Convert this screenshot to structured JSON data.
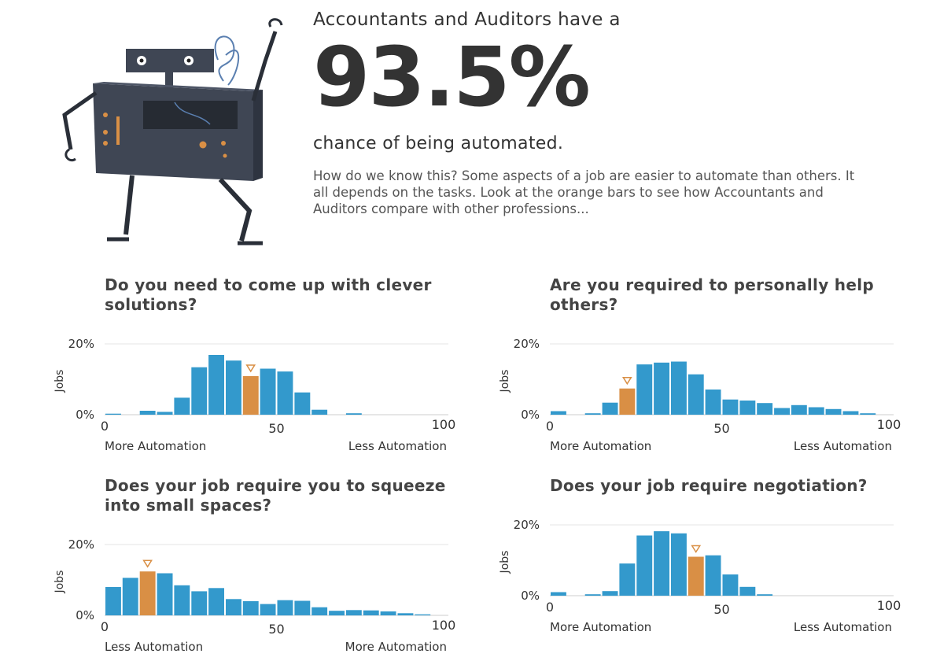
{
  "intro": {
    "line1": "Accountants and Auditors have a",
    "percent": "93.5%",
    "line2": "chance of being automated.",
    "description": "How do we know this? Some aspects of a job are easier to automate than others. It all depends on the tasks. Look at the orange bars to see how Accountants and Auditors compare with other professions...",
    "illustration": "robot-illustration"
  },
  "colors": {
    "bar": "#3399cc",
    "highlight": "#d98f45",
    "axis": "#cccccc",
    "grid": "#e5e5e5",
    "text": "#333333"
  },
  "chart_data": [
    {
      "type": "bar",
      "title": "Do you need to come up with clever solutions?",
      "ylabel": "Jobs",
      "yticks": [
        "20%",
        "0%"
      ],
      "xticks": [
        "0",
        "50",
        "100"
      ],
      "left_label": "More Automation",
      "right_label": "Less Automation",
      "ylim": [
        0,
        20
      ],
      "bin_width": 5,
      "values": [
        0.3,
        0,
        1.1,
        0.8,
        4.8,
        13.4,
        16.9,
        15.3,
        10.9,
        13.0,
        12.2,
        6.3,
        1.4,
        0,
        0.4,
        0,
        0,
        0,
        0,
        0
      ],
      "highlight_index": 8
    },
    {
      "type": "bar",
      "title": "Are you required to personally help others?",
      "ylabel": "Jobs",
      "yticks": [
        "20%",
        "0%"
      ],
      "xticks": [
        "0",
        "50",
        "100"
      ],
      "left_label": "More Automation",
      "right_label": "Less Automation",
      "ylim": [
        0,
        20
      ],
      "bin_width": 5,
      "values": [
        1.0,
        0,
        0.4,
        3.4,
        7.4,
        14.2,
        14.7,
        15.0,
        11.4,
        7.1,
        4.3,
        4.0,
        3.3,
        1.9,
        2.7,
        2.1,
        1.6,
        1.0,
        0.4,
        0
      ],
      "highlight_index": 4
    },
    {
      "type": "bar",
      "title": "Does your job require you to squeeze into small spaces?",
      "ylabel": "Jobs",
      "yticks": [
        "20%",
        "0%"
      ],
      "xticks": [
        "0",
        "50",
        "100"
      ],
      "left_label": "Less Automation",
      "right_label": "More Automation",
      "ylim": [
        0,
        20
      ],
      "bin_width": 5,
      "values": [
        8.0,
        10.6,
        12.4,
        11.9,
        8.5,
        6.8,
        7.7,
        4.6,
        4.0,
        3.2,
        4.3,
        4.1,
        2.3,
        1.3,
        1.5,
        1.4,
        1.1,
        0.6,
        0.3,
        0
      ],
      "highlight_index": 2
    },
    {
      "type": "bar",
      "title": "Does your job require negotiation?",
      "ylabel": "Jobs",
      "yticks": [
        "20%",
        "0%"
      ],
      "xticks": [
        "0",
        "50",
        "100"
      ],
      "left_label": "More Automation",
      "right_label": "Less Automation",
      "ylim": [
        0,
        20
      ],
      "bin_width": 5,
      "values": [
        1.0,
        0,
        0.4,
        1.3,
        9.1,
        17.0,
        18.2,
        17.6,
        11.0,
        11.4,
        6.0,
        2.5,
        0.4,
        0,
        0,
        0,
        0,
        0,
        0,
        0
      ],
      "highlight_index": 8
    }
  ]
}
